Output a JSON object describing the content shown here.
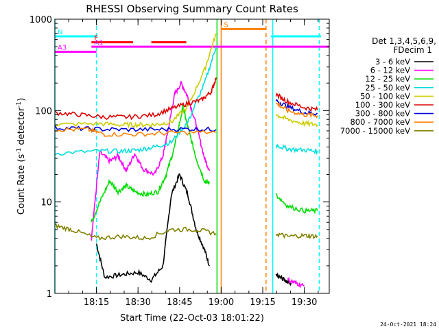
{
  "chart_data": {
    "type": "line",
    "title": "RHESSI Observing Summary Count Rates",
    "xlabel": "Start Time (22-Oct-03 18:01:22)",
    "ylabel": "Count Rate (s",
    "ylabel_sup": "-1",
    "ylabel_rest": " detector",
    "ylabel_close": ")",
    "y_scale": "log",
    "ylim": [
      1,
      1000
    ],
    "xlim": [
      18.0,
      19.65
    ],
    "y_ticks": [
      {
        "v": 1,
        "label": "1"
      },
      {
        "v": 10,
        "label": "10"
      },
      {
        "v": 100,
        "label": "100"
      },
      {
        "v": 1000,
        "label": "1000"
      }
    ],
    "x_ticks": [
      {
        "v": 18.25,
        "label": "18:15"
      },
      {
        "v": 18.5,
        "label": "18:30"
      },
      {
        "v": 18.75,
        "label": "18:45"
      },
      {
        "v": 19.0,
        "label": "19:00"
      },
      {
        "v": 19.25,
        "label": "19:15"
      },
      {
        "v": 19.5,
        "label": "19:30"
      }
    ],
    "legend_header": [
      "Det 1,3,4,5,6,9,",
      "FDecim 1"
    ],
    "footer_date": "24-Oct-2021 18:24",
    "series": [
      {
        "name": "3 - 6 keV",
        "color": "#000000",
        "points": [
          [
            18.25,
            3.5
          ],
          [
            18.3,
            1.5
          ],
          [
            18.4,
            1.6
          ],
          [
            18.5,
            1.7
          ],
          [
            18.58,
            1.4
          ],
          [
            18.65,
            2
          ],
          [
            18.7,
            12
          ],
          [
            18.75,
            20
          ],
          [
            18.8,
            12
          ],
          [
            18.85,
            5
          ],
          [
            18.9,
            3
          ],
          [
            18.93,
            2
          ]
        ]
      },
      {
        "name": "6 - 12 keV",
        "color": "#ff00ff",
        "points": [
          [
            18.22,
            4.0
          ],
          [
            18.27,
            35
          ],
          [
            18.33,
            28
          ],
          [
            18.38,
            32
          ],
          [
            18.43,
            22
          ],
          [
            18.48,
            34
          ],
          [
            18.53,
            23
          ],
          [
            18.6,
            20
          ],
          [
            18.65,
            32
          ],
          [
            18.68,
            60
          ],
          [
            18.72,
            150
          ],
          [
            18.76,
            200
          ],
          [
            18.8,
            140
          ],
          [
            18.85,
            70
          ],
          [
            18.9,
            30
          ],
          [
            18.93,
            22
          ]
        ]
      },
      {
        "name": "12 - 25 keV",
        "color": "#00dd00",
        "points": [
          [
            18.22,
            6.0
          ],
          [
            18.27,
            10
          ],
          [
            18.33,
            17
          ],
          [
            18.38,
            13
          ],
          [
            18.43,
            15
          ],
          [
            18.48,
            13
          ],
          [
            18.55,
            12
          ],
          [
            18.62,
            13
          ],
          [
            18.67,
            20
          ],
          [
            18.72,
            40
          ],
          [
            18.77,
            110
          ],
          [
            18.8,
            65
          ],
          [
            18.85,
            30
          ],
          [
            18.9,
            17
          ],
          [
            18.93,
            16
          ]
        ]
      },
      {
        "name": "25 - 50 keV",
        "color": "#00dddd",
        "points": [
          [
            18.0,
            34
          ],
          [
            18.25,
            36
          ],
          [
            18.4,
            36
          ],
          [
            18.5,
            37
          ],
          [
            18.6,
            40
          ],
          [
            18.7,
            45
          ],
          [
            18.8,
            75
          ],
          [
            18.9,
            200
          ],
          [
            18.97,
            500
          ]
        ]
      },
      {
        "name": "50 - 100 keV",
        "color": "#cccc00",
        "points": [
          [
            18.0,
            70
          ],
          [
            18.25,
            72
          ],
          [
            18.4,
            70
          ],
          [
            18.5,
            70
          ],
          [
            18.6,
            70
          ],
          [
            18.7,
            75
          ],
          [
            18.8,
            110
          ],
          [
            18.9,
            280
          ],
          [
            18.97,
            700
          ]
        ]
      },
      {
        "name": "100 - 300 keV",
        "color": "#dd0000",
        "points": [
          [
            18.0,
            95
          ],
          [
            18.15,
            90
          ],
          [
            18.3,
            85
          ],
          [
            18.45,
            85
          ],
          [
            18.6,
            90
          ],
          [
            18.7,
            105
          ],
          [
            18.8,
            120
          ],
          [
            18.88,
            130
          ],
          [
            18.94,
            160
          ],
          [
            18.97,
            230
          ]
        ]
      },
      {
        "name": "300 - 800 keV",
        "color": "#0000dd",
        "points": [
          [
            18.0,
            65
          ],
          [
            18.2,
            63
          ],
          [
            18.4,
            62
          ],
          [
            18.6,
            62
          ],
          [
            18.8,
            63
          ],
          [
            18.97,
            62
          ]
        ]
      },
      {
        "name": "800 - 7000 keV",
        "color": "#ff8000",
        "points": [
          [
            18.0,
            62
          ],
          [
            18.2,
            62
          ],
          [
            18.3,
            55
          ],
          [
            18.5,
            55
          ],
          [
            18.7,
            57
          ],
          [
            18.97,
            58
          ]
        ]
      },
      {
        "name": "7000 - 15000 keV",
        "color": "#808000",
        "points": [
          [
            18.0,
            5.5
          ],
          [
            18.1,
            5.0
          ],
          [
            18.25,
            4.0
          ],
          [
            18.4,
            4.2
          ],
          [
            18.55,
            4.0
          ],
          [
            18.7,
            5.0
          ],
          [
            18.85,
            5.0
          ],
          [
            18.97,
            4.5
          ]
        ]
      }
    ],
    "late_segments": [
      {
        "series": "100 - 300 keV",
        "points": [
          [
            19.33,
            150
          ],
          [
            19.4,
            125
          ],
          [
            19.5,
            108
          ],
          [
            19.58,
            102
          ]
        ]
      },
      {
        "series": "300 - 800 keV",
        "points": [
          [
            19.33,
            130
          ],
          [
            19.4,
            110
          ],
          [
            19.5,
            95
          ],
          [
            19.58,
            93
          ]
        ]
      },
      {
        "series": "800 - 7000 keV",
        "points": [
          [
            19.33,
            120
          ],
          [
            19.4,
            100
          ],
          [
            19.5,
            90
          ],
          [
            19.58,
            88
          ]
        ]
      },
      {
        "series": "50 - 100 keV",
        "points": [
          [
            19.33,
            90
          ],
          [
            19.4,
            80
          ],
          [
            19.5,
            72
          ],
          [
            19.58,
            70
          ]
        ]
      },
      {
        "series": "25 - 50 keV",
        "points": [
          [
            19.33,
            42
          ],
          [
            19.4,
            38
          ],
          [
            19.5,
            37
          ],
          [
            19.58,
            36
          ]
        ]
      },
      {
        "series": "12 - 25 keV",
        "points": [
          [
            19.33,
            12
          ],
          [
            19.4,
            9
          ],
          [
            19.5,
            8
          ],
          [
            19.58,
            8
          ]
        ]
      },
      {
        "series": "7000 - 15000 keV",
        "points": [
          [
            19.33,
            4.5
          ],
          [
            19.4,
            4.2
          ],
          [
            19.5,
            4.3
          ],
          [
            19.58,
            4.2
          ]
        ]
      },
      {
        "series": "3 - 6 keV",
        "points": [
          [
            19.33,
            1.6
          ],
          [
            19.38,
            1.4
          ],
          [
            19.42,
            1.3
          ]
        ]
      },
      {
        "series": "6 - 12 keV",
        "points": [
          [
            19.4,
            1.4
          ],
          [
            19.45,
            1.3
          ],
          [
            19.5,
            1.2
          ]
        ]
      }
    ],
    "flag_bars": [
      {
        "label": "N",
        "color": "#00ffff",
        "y": 650,
        "x0": 18.0,
        "x1": 18.25
      },
      {
        "label": "F",
        "color": "#ff0000",
        "y": 560,
        "x0": 18.22,
        "x1": 18.47
      },
      {
        "label": "",
        "color": "#ff0000",
        "y": 560,
        "x0": 18.58,
        "x1": 18.79
      },
      {
        "label": "A1",
        "color": "#ff00ff",
        "y": 500,
        "x0": 18.22,
        "x1": 19.65
      },
      {
        "label": "A3",
        "color": "#ff00ff",
        "y": 440,
        "x0": 18.0,
        "x1": 18.25
      },
      {
        "label": "S",
        "color": "#ff8000",
        "y": 780,
        "x0": 19.0,
        "x1": 19.27
      },
      {
        "label": "",
        "color": "#00ffff",
        "y": 650,
        "x0": 19.3,
        "x1": 19.6
      }
    ],
    "vertical_lines": [
      {
        "x": 18.0,
        "color": "#00ffff",
        "style": "solid"
      },
      {
        "x": 18.25,
        "color": "#00ffff",
        "style": "dashed"
      },
      {
        "x": 18.975,
        "color": "#00dd00",
        "style": "solid"
      },
      {
        "x": 19.0,
        "color": "#ff8000",
        "style": "solid"
      },
      {
        "x": 19.27,
        "color": "#ff8000",
        "style": "dashed"
      },
      {
        "x": 19.31,
        "color": "#00ffff",
        "style": "solid"
      },
      {
        "x": 19.59,
        "color": "#00ffff",
        "style": "dashed"
      }
    ]
  }
}
